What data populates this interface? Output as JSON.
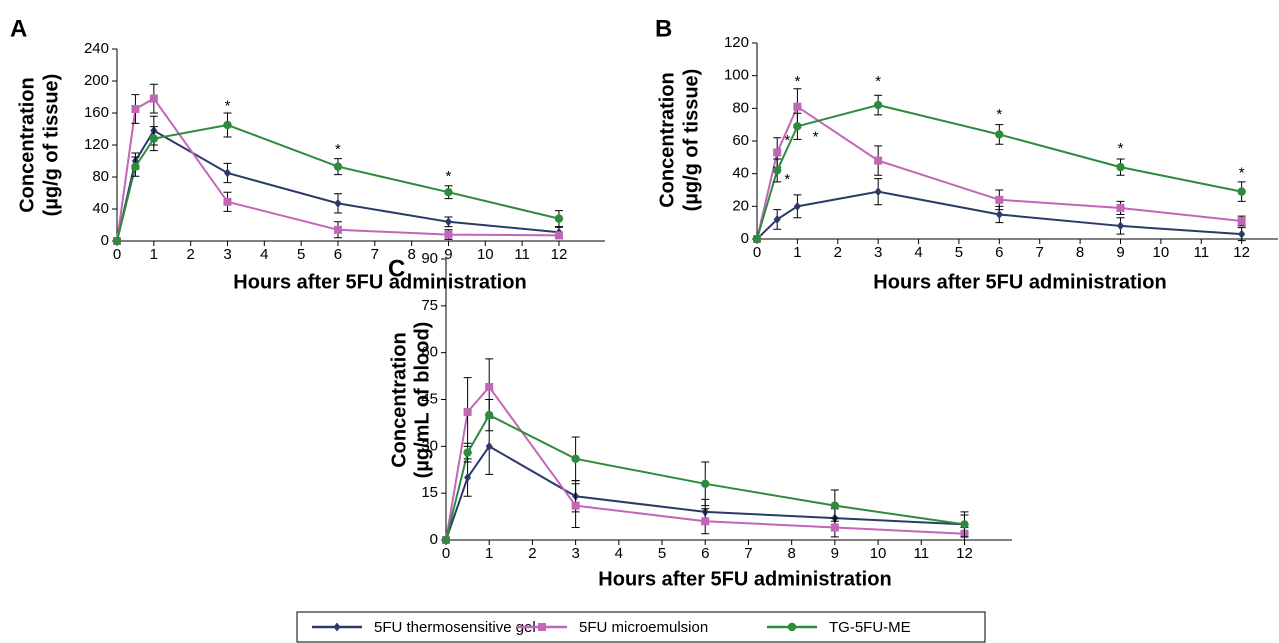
{
  "legend": {
    "entries": [
      {
        "name": "5FU thermosensitive gel",
        "color": "#2b3a67",
        "marker": "diamond"
      },
      {
        "name": "5FU microemulsion",
        "color": "#c266b8",
        "marker": "square"
      },
      {
        "name": "TG-5FU-ME",
        "color": "#2e8b3e",
        "marker": "circle"
      }
    ]
  },
  "chart_data": [
    {
      "type": "line",
      "panel_label": "A",
      "xlabel": "Hours after 5FU administration",
      "ylabel": [
        "Concentration",
        "(µg/g of tissue)"
      ],
      "x": [
        0,
        0.5,
        1,
        3,
        6,
        9,
        12
      ],
      "xlim": [
        0,
        13.25
      ],
      "xticks": [
        0,
        1,
        2,
        3,
        4,
        5,
        6,
        7,
        8,
        9,
        10,
        11,
        12
      ],
      "ylim": [
        0,
        240
      ],
      "yticks": [
        0,
        40,
        80,
        120,
        160,
        200,
        240
      ],
      "series": [
        {
          "values": [
            0,
            100,
            138,
            85,
            47,
            24,
            11
          ],
          "errors": [
            0,
            10,
            18,
            12,
            12,
            6,
            6
          ]
        },
        {
          "values": [
            0,
            165,
            178,
            49,
            14,
            8,
            7
          ],
          "errors": [
            0,
            18,
            18,
            12,
            10,
            6,
            4
          ]
        },
        {
          "values": [
            0,
            93,
            128,
            145,
            93,
            61,
            28
          ],
          "errors": [
            0,
            12,
            15,
            15,
            10,
            8,
            10
          ]
        }
      ],
      "annotations": [
        {
          "text": "*",
          "x": 3,
          "y": 168
        },
        {
          "text": "*",
          "x": 6,
          "y": 114
        },
        {
          "text": "*",
          "x": 9,
          "y": 80
        }
      ]
    },
    {
      "type": "line",
      "panel_label": "B",
      "xlabel": "Hours after 5FU administration",
      "ylabel": [
        "Concentration",
        "(µg/g of tissue)"
      ],
      "x": [
        0,
        0.5,
        1,
        3,
        6,
        9,
        12
      ],
      "xlim": [
        0,
        12.9
      ],
      "xticks": [
        0,
        1,
        2,
        3,
        4,
        5,
        6,
        7,
        8,
        9,
        10,
        11,
        12
      ],
      "ylim": [
        0,
        120
      ],
      "yticks": [
        0,
        20,
        40,
        60,
        80,
        100,
        120
      ],
      "series": [
        {
          "values": [
            0,
            12,
            20,
            29,
            15,
            8,
            3
          ],
          "errors": [
            0,
            6,
            7,
            8,
            5,
            5,
            4
          ]
        },
        {
          "values": [
            0,
            53,
            81,
            48,
            24,
            19,
            11
          ],
          "errors": [
            0,
            9,
            11,
            9,
            6,
            4,
            3
          ]
        },
        {
          "values": [
            0,
            42,
            69,
            82,
            64,
            44,
            29
          ],
          "errors": [
            0,
            7,
            8,
            6,
            6,
            5,
            6
          ]
        }
      ],
      "annotations": [
        {
          "text": "*",
          "x": 0.75,
          "y": 60
        },
        {
          "text": "*",
          "x": 0.75,
          "y": 36
        },
        {
          "text": "*",
          "x": 1,
          "y": 96
        },
        {
          "text": "*",
          "x": 1.45,
          "y": 62
        },
        {
          "text": "*",
          "x": 3,
          "y": 96
        },
        {
          "text": "*",
          "x": 6,
          "y": 76
        },
        {
          "text": "*",
          "x": 9,
          "y": 55
        },
        {
          "text": "*",
          "x": 12,
          "y": 40
        }
      ]
    },
    {
      "type": "line",
      "panel_label": "C",
      "xlabel": "Hours after 5FU administration",
      "ylabel": [
        "Concentration",
        "(µg/mL of blood)"
      ],
      "x": [
        0,
        0.5,
        1,
        3,
        6,
        9,
        12
      ],
      "xlim": [
        0,
        13.1
      ],
      "xticks": [
        0,
        1,
        2,
        3,
        4,
        5,
        6,
        7,
        8,
        9,
        10,
        11,
        12
      ],
      "ylim": [
        0,
        90
      ],
      "yticks": [
        0,
        15,
        30,
        45,
        60,
        75,
        90
      ],
      "series": [
        {
          "values": [
            0,
            20,
            30,
            14,
            9,
            7,
            5
          ],
          "errors": [
            0,
            6,
            9,
            5,
            4,
            3,
            3
          ]
        },
        {
          "values": [
            0,
            41,
            49,
            11,
            6,
            4,
            2
          ],
          "errors": [
            0,
            11,
            9,
            7,
            4,
            3,
            2
          ]
        },
        {
          "values": [
            0,
            28,
            40,
            26,
            18,
            11,
            5
          ],
          "errors": [
            0,
            3,
            5,
            7,
            7,
            5,
            4
          ]
        }
      ],
      "annotations": []
    }
  ]
}
